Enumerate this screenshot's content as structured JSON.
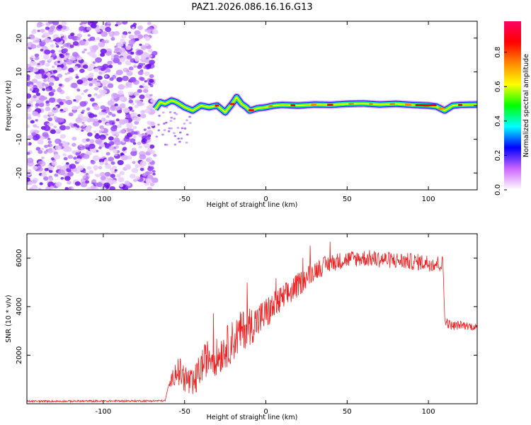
{
  "title": "PAZ1.2026.086.16.16.G13",
  "chart_data": [
    {
      "type": "heatmap",
      "name": "spectrogram",
      "xlabel": "Height of straight line (km)",
      "ylabel": "Frequency (Hz)",
      "xlim": [
        -147,
        130
      ],
      "ylim": [
        -25,
        25
      ],
      "xticks": [
        -100,
        -50,
        0,
        50,
        100
      ],
      "yticks": [
        -20,
        -10,
        0,
        10,
        20
      ],
      "noise_region_x": [
        -147,
        -68
      ],
      "ridge": {
        "x": [
          -68,
          -65,
          -62,
          -58,
          -55,
          -50,
          -45,
          -40,
          -35,
          -30,
          -25,
          -20,
          -18,
          -15,
          -12,
          -10,
          -5,
          0,
          5,
          10,
          20,
          30,
          40,
          50,
          60,
          70,
          80,
          90,
          100,
          105,
          110,
          115,
          120,
          130
        ],
        "freq": [
          -1,
          1,
          0.5,
          1.5,
          1,
          -0.5,
          -1.5,
          0,
          -0.5,
          0,
          -2,
          1,
          2.5,
          0.5,
          -0.5,
          -1.5,
          -0.8,
          -0.5,
          0,
          0.2,
          0,
          0.3,
          0.2,
          0.5,
          0.6,
          0.3,
          0.5,
          0.2,
          0,
          -0.3,
          -1.5,
          0,
          0.2,
          0.3
        ]
      },
      "colorbar": {
        "label": "Normalized spectral amplitude",
        "ticks": [
          0.0,
          0.2,
          0.4,
          0.6,
          0.8
        ],
        "tick_labels": [
          "0.0",
          "0.2",
          "0.4",
          "0.6",
          "0.8"
        ],
        "colors": [
          "#ffffff",
          "#cc66ff",
          "#0000ff",
          "#00ffff",
          "#00ff00",
          "#ffff00",
          "#ff8800",
          "#ff0000",
          "#ff0066"
        ]
      }
    },
    {
      "type": "line",
      "name": "snr",
      "xlabel": "Height of straight line (km)",
      "ylabel": "SNR (10 * v/v)",
      "xlim": [
        -147,
        130
      ],
      "ylim": [
        0,
        7000
      ],
      "xticks": [
        -100,
        -50,
        0,
        50,
        100
      ],
      "yticks": [
        2000,
        4000,
        6000
      ],
      "color": "#ee2222",
      "envelope": {
        "x": [
          -147,
          -62,
          -60,
          -55,
          -50,
          -45,
          -40,
          -35,
          -30,
          -25,
          -20,
          -15,
          -10,
          -5,
          0,
          5,
          10,
          20,
          30,
          40,
          50,
          60,
          70,
          80,
          90,
          100,
          109,
          110,
          112,
          115,
          120,
          125,
          130
        ],
        "y": [
          100,
          120,
          700,
          1400,
          1100,
          700,
          1500,
          2000,
          1900,
          2300,
          2600,
          3000,
          3200,
          3400,
          3700,
          4000,
          4300,
          4900,
          5500,
          5800,
          5950,
          6000,
          5950,
          5900,
          5850,
          5800,
          5750,
          3500,
          3300,
          3200,
          3250,
          3200,
          3150
        ]
      },
      "noise": {
        "x": [
          -147,
          -60,
          -55,
          -40,
          -20,
          0,
          30,
          50,
          109,
          110,
          130
        ],
        "amplitude": [
          40,
          40,
          600,
          700,
          900,
          700,
          400,
          350,
          350,
          200,
          150
        ]
      }
    }
  ]
}
